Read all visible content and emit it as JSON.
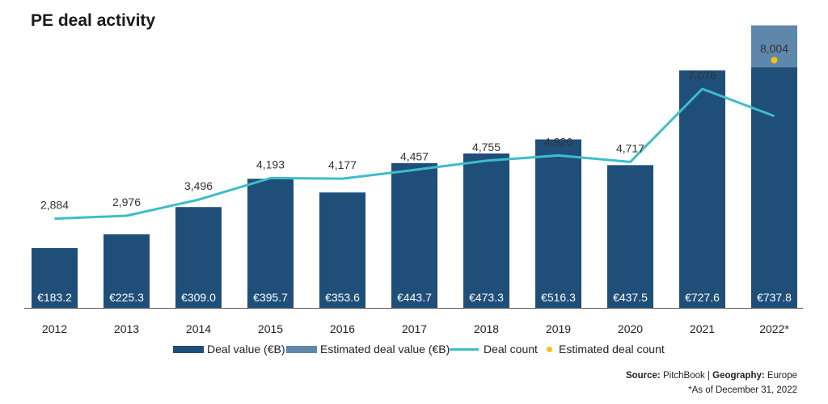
{
  "title": "PE deal activity",
  "colors": {
    "deal_value": "#1f4e79",
    "estimated_deal_value": "#5f87ab",
    "deal_count": "#3dbdc9",
    "estimated_deal_count": "#f2c40f",
    "axis": "#555555"
  },
  "chart_data": {
    "type": "bar",
    "title": "PE deal activity",
    "xlabel": "",
    "ylabel": "",
    "categories": [
      "2012",
      "2013",
      "2014",
      "2015",
      "2016",
      "2017",
      "2018",
      "2019",
      "2020",
      "2021",
      "2022*"
    ],
    "series": [
      {
        "name": "Deal value (€B)",
        "type": "bar",
        "values": [
          183.2,
          225.3,
          309.0,
          395.7,
          353.6,
          443.7,
          473.3,
          516.3,
          437.5,
          727.6,
          737.8
        ],
        "labels": [
          "€183.2",
          "€225.3",
          "€309.0",
          "€395.7",
          "€353.6",
          "€443.7",
          "€473.3",
          "€516.3",
          "€437.5",
          "€727.6",
          "€737.8"
        ]
      },
      {
        "name": "Estimated deal value (€B)",
        "type": "bar-stacked",
        "values": [
          0,
          0,
          0,
          0,
          0,
          0,
          0,
          0,
          0,
          0,
          128
        ]
      },
      {
        "name": "Deal count",
        "type": "line",
        "values": [
          2884,
          2976,
          3496,
          4193,
          4177,
          4457,
          4755,
          4926,
          4717,
          7076,
          6200
        ],
        "labels": [
          "2,884",
          "2,976",
          "3,496",
          "4,193",
          "4,177",
          "4,457",
          "4,755",
          "4,926",
          "4,717",
          "7,076",
          ""
        ]
      },
      {
        "name": "Estimated deal count",
        "type": "point",
        "values": [
          null,
          null,
          null,
          null,
          null,
          null,
          null,
          null,
          null,
          null,
          8004
        ],
        "labels": [
          "",
          "",
          "",
          "",
          "",
          "",
          "",
          "",
          "",
          "",
          "8,004"
        ]
      }
    ],
    "bar_ylim": [
      0,
      800
    ],
    "count_ylim": [
      0,
      8200
    ],
    "grid": false,
    "legend_position": "bottom"
  },
  "legend": {
    "deal_value": "Deal value (€B)",
    "estimated_deal_value": "Estimated deal value (€B)",
    "deal_count": "Deal count",
    "estimated_deal_count": "Estimated deal count"
  },
  "footer": {
    "source_label": "Source:",
    "source_value": "PitchBook",
    "separator": "|",
    "geography_label": "Geography:",
    "geography_value": "Europe",
    "note": "*As of December 31, 2022"
  }
}
